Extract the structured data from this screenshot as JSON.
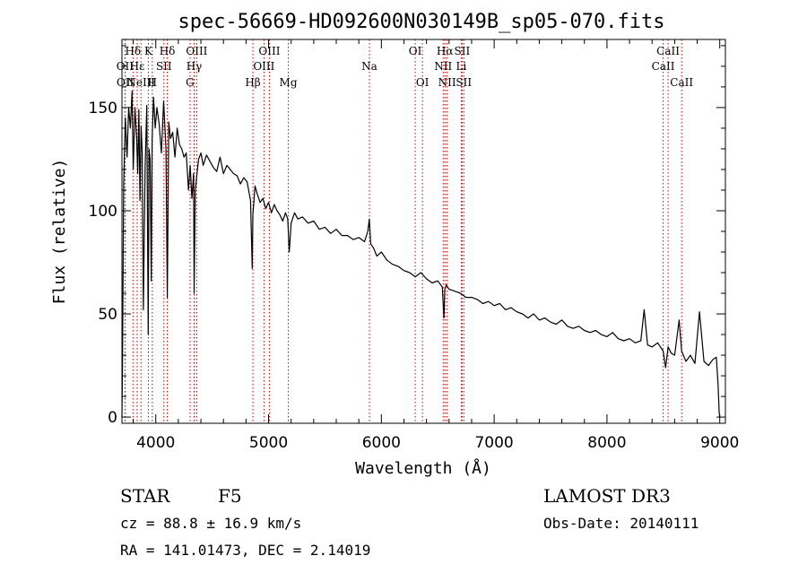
{
  "chart_data": {
    "type": "line",
    "title": "spec-56669-HD092600N030149B_sp05-070.fits",
    "xlabel": "Wavelength (Å)",
    "ylabel": "Flux (relative)",
    "xlim": [
      3700,
      9050
    ],
    "ylim": [
      -3,
      183
    ],
    "xticks": [
      4000,
      5000,
      6000,
      7000,
      8000,
      9000
    ],
    "xtick_labels": [
      "4000",
      "5000",
      "6000",
      "7000",
      "8000",
      "9000"
    ],
    "yticks": [
      0,
      50,
      100,
      150
    ],
    "ytick_labels": [
      "0",
      "50",
      "100",
      "150"
    ],
    "series": [
      {
        "name": "spectrum",
        "color": "#000000",
        "x": [
          3700,
          3705,
          3715,
          3730,
          3745,
          3760,
          3775,
          3790,
          3800,
          3815,
          3830,
          3840,
          3850,
          3860,
          3870,
          3880,
          3890,
          3905,
          3920,
          3933,
          3940,
          3950,
          3960,
          3968,
          3980,
          3995,
          4010,
          4030,
          4050,
          4070,
          4090,
          4102,
          4115,
          4130,
          4150,
          4170,
          4190,
          4210,
          4230,
          4250,
          4270,
          4290,
          4305,
          4320,
          4335,
          4340,
          4350,
          4365,
          4380,
          4400,
          4420,
          4450,
          4480,
          4510,
          4540,
          4570,
          4600,
          4630,
          4660,
          4690,
          4720,
          4750,
          4780,
          4810,
          4840,
          4855,
          4861,
          4868,
          4880,
          4900,
          4925,
          4950,
          4975,
          5000,
          5025,
          5050,
          5075,
          5100,
          5125,
          5150,
          5170,
          5183,
          5200,
          5230,
          5260,
          5300,
          5350,
          5400,
          5450,
          5500,
          5550,
          5600,
          5650,
          5700,
          5750,
          5800,
          5850,
          5880,
          5893,
          5905,
          5930,
          5960,
          6000,
          6050,
          6100,
          6150,
          6200,
          6250,
          6300,
          6350,
          6400,
          6450,
          6500,
          6540,
          6555,
          6563,
          6575,
          6600,
          6650,
          6700,
          6750,
          6800,
          6850,
          6900,
          6950,
          7000,
          7050,
          7100,
          7150,
          7200,
          7250,
          7300,
          7350,
          7400,
          7450,
          7500,
          7550,
          7600,
          7650,
          7700,
          7750,
          7800,
          7850,
          7900,
          7950,
          8000,
          8050,
          8100,
          8150,
          8200,
          8250,
          8300,
          8330,
          8360,
          8400,
          8450,
          8498,
          8520,
          8542,
          8570,
          8600,
          8640,
          8662,
          8700,
          8740,
          8780,
          8820,
          8860,
          8900,
          8940,
          8970,
          8985,
          8995,
          9000
        ],
        "y": [
          0,
          25,
          112,
          145,
          126,
          150,
          140,
          158,
          120,
          150,
          135,
          118,
          149,
          105,
          141,
          128,
          52,
          120,
          151,
          40,
          130,
          125,
          66,
          135,
          155,
          140,
          150,
          142,
          128,
          153,
          130,
          58,
          143,
          135,
          138,
          126,
          140,
          132,
          130,
          126,
          128,
          110,
          122,
          106,
          118,
          60,
          110,
          118,
          125,
          128,
          122,
          127,
          124,
          121,
          119,
          126,
          118,
          122,
          120,
          118,
          117,
          113,
          116,
          114,
          105,
          72,
          98,
          103,
          112,
          108,
          104,
          106,
          101,
          104,
          99,
          103,
          100,
          98,
          95,
          99,
          96,
          80,
          94,
          99,
          96,
          97,
          94,
          95,
          91,
          92,
          89,
          91,
          88,
          88,
          86,
          87,
          85,
          90,
          96,
          84,
          82,
          78,
          80,
          76,
          74,
          73,
          71,
          70,
          68,
          70,
          67,
          65,
          66,
          63,
          48,
          62,
          64,
          62,
          61,
          60,
          58,
          58,
          57,
          55,
          56,
          54,
          55,
          52,
          53,
          51,
          50,
          48,
          50,
          47,
          48,
          46,
          45,
          47,
          44,
          43,
          44,
          42,
          41,
          42,
          40,
          39,
          41,
          38,
          37,
          38,
          36,
          37,
          52,
          35,
          34,
          36,
          32,
          24,
          34,
          31,
          30,
          47,
          32,
          27,
          30,
          26,
          51,
          27,
          25,
          28,
          29,
          16,
          2,
          0
        ]
      }
    ],
    "spectral_lines": [
      {
        "label": "Hδ",
        "wavelength": 3798,
        "row": 1
      },
      {
        "label": "OII",
        "wavelength": 3727,
        "row": 2
      },
      {
        "label": "OII",
        "wavelength": 3729,
        "row": 3
      },
      {
        "label": "Hε",
        "wavelength": 3835,
        "row": 2
      },
      {
        "label": "K",
        "wavelength": 3934,
        "row": 1
      },
      {
        "label": "H",
        "wavelength": 3969,
        "row": 3
      },
      {
        "label": "NeIII",
        "wavelength": 3869,
        "row": 3
      },
      {
        "label": "SII",
        "wavelength": 4072,
        "row": 2
      },
      {
        "label": "Hδ",
        "wavelength": 4102,
        "row": 1
      },
      {
        "label": "OIII",
        "wavelength": 4363,
        "row": 1
      },
      {
        "label": "Hγ",
        "wavelength": 4340,
        "row": 2
      },
      {
        "label": "G",
        "wavelength": 4304,
        "row": 3
      },
      {
        "label": "Hβ",
        "wavelength": 4861,
        "row": 3
      },
      {
        "label": "OIII",
        "wavelength": 5007,
        "row": 1
      },
      {
        "label": "OIII",
        "wavelength": 4959,
        "row": 2
      },
      {
        "label": "Mg",
        "wavelength": 5175,
        "row": 3
      },
      {
        "label": "Na",
        "wavelength": 5894,
        "row": 2
      },
      {
        "label": "OI",
        "wavelength": 6300,
        "row": 1
      },
      {
        "label": "OI",
        "wavelength": 6364,
        "row": 3
      },
      {
        "label": "Hα",
        "wavelength": 6563,
        "row": 1
      },
      {
        "label": "NII",
        "wavelength": 6548,
        "row": 2
      },
      {
        "label": "NII",
        "wavelength": 6583,
        "row": 3
      },
      {
        "label": "SII",
        "wavelength": 6716,
        "row": 1
      },
      {
        "label": "Li",
        "wavelength": 6708,
        "row": 2
      },
      {
        "label": "SII",
        "wavelength": 6731,
        "row": 3
      },
      {
        "label": "CaII",
        "wavelength": 8542,
        "row": 1
      },
      {
        "label": "CaII",
        "wavelength": 8498,
        "row": 2
      },
      {
        "label": "CaII",
        "wavelength": 8662,
        "row": 3
      }
    ],
    "line_color": "#cc0000"
  },
  "footer": {
    "class_label": "STAR",
    "subclass": "F5",
    "survey": "LAMOST DR3",
    "redshift": "cz = 88.8 ± 16.9 km/s",
    "obs_date": "Obs-Date: 20140111",
    "coords": "RA = 141.01473, DEC =   2.14019"
  }
}
